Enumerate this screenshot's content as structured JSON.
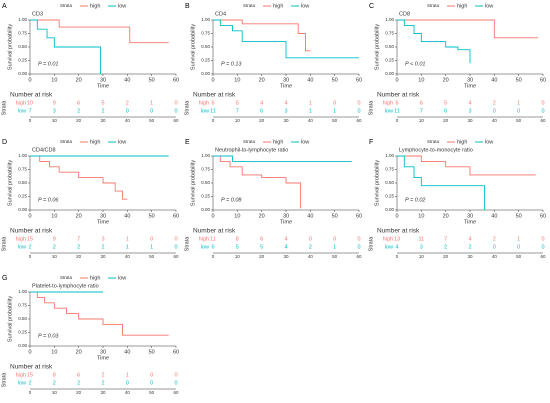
{
  "chart_data": [
    {
      "type": "line",
      "step": true,
      "panel": "A",
      "title": "CD3",
      "annotation": "P = 0.01",
      "legend_title": "Strata",
      "xlabel": "Time",
      "ylabel": "Survival probability",
      "xlim": [
        0,
        60
      ],
      "xticks": [
        0,
        10,
        20,
        30,
        40,
        50,
        60
      ],
      "ylim": [
        0,
        1
      ],
      "yticks": [
        {
          "value": 0,
          "label": "0.00"
        },
        {
          "value": 0.25,
          "label": "0.25"
        },
        {
          "value": 0.5,
          "label": "0.50"
        },
        {
          "value": 0.75,
          "label": "0.75"
        },
        {
          "value": 1,
          "label": "1.00"
        }
      ],
      "series": [
        {
          "name": "high",
          "color": "#F8766D",
          "x": [
            0,
            12,
            41,
            57
          ],
          "values": [
            1,
            0.87,
            0.58,
            0.58
          ]
        },
        {
          "name": "low",
          "color": "#00BFC4",
          "x": [
            0,
            3,
            7,
            10,
            29,
            29
          ],
          "values": [
            1,
            0.83,
            0.67,
            0.5,
            0.5,
            0
          ]
        }
      ],
      "risk_table": {
        "title": "Number at risk",
        "ylabel": "Strata",
        "rows": [
          [
            10,
            9,
            6,
            5,
            2,
            1,
            0
          ],
          [
            7,
            3,
            2,
            2,
            0,
            0,
            0
          ]
        ]
      }
    },
    {
      "type": "line",
      "step": true,
      "panel": "B",
      "title": "CD4",
      "annotation": "P = 0.13",
      "legend_title": "Strata",
      "xlabel": "Time",
      "ylabel": "Survival probability",
      "xlim": [
        0,
        60
      ],
      "xticks": [
        0,
        10,
        20,
        30,
        40,
        50,
        60
      ],
      "ylim": [
        0,
        1
      ],
      "yticks": [
        {
          "value": 0,
          "label": "0.00"
        },
        {
          "value": 0.25,
          "label": "0.25"
        },
        {
          "value": 0.5,
          "label": "0.50"
        },
        {
          "value": 0.75,
          "label": "0.75"
        },
        {
          "value": 1,
          "label": "1.00"
        }
      ],
      "series": [
        {
          "name": "high",
          "color": "#F8766D",
          "x": [
            0,
            12,
            35,
            38,
            40
          ],
          "values": [
            1,
            0.93,
            0.75,
            0.43,
            0.43
          ]
        },
        {
          "name": "low",
          "color": "#00BFC4",
          "x": [
            0,
            3,
            8,
            12,
            30,
            60
          ],
          "values": [
            1,
            0.9,
            0.8,
            0.6,
            0.3,
            0.3
          ]
        }
      ],
      "risk_table": {
        "title": "Number at risk",
        "ylabel": "Strata",
        "rows": [
          [
            6,
            5,
            4,
            4,
            1,
            0,
            0
          ],
          [
            11,
            7,
            6,
            3,
            1,
            1,
            0
          ]
        ]
      }
    },
    {
      "type": "line",
      "step": true,
      "panel": "C",
      "title": "CD8",
      "annotation": "P < 0.01",
      "legend_title": "Strata",
      "xlabel": "Time",
      "ylabel": "Survival probability",
      "xlim": [
        0,
        60
      ],
      "xticks": [
        0,
        10,
        20,
        30,
        40,
        50,
        60
      ],
      "ylim": [
        0,
        1
      ],
      "yticks": [
        {
          "value": 0,
          "label": "0.00"
        },
        {
          "value": 0.25,
          "label": "0.25"
        },
        {
          "value": 0.5,
          "label": "0.50"
        },
        {
          "value": 0.75,
          "label": "0.75"
        },
        {
          "value": 1,
          "label": "1.00"
        }
      ],
      "series": [
        {
          "name": "high",
          "color": "#F8766D",
          "x": [
            0,
            40,
            58
          ],
          "values": [
            1,
            0.67,
            0.67
          ]
        },
        {
          "name": "low",
          "color": "#00BFC4",
          "x": [
            0,
            3,
            7,
            10,
            20,
            25,
            30
          ],
          "values": [
            1,
            0.9,
            0.75,
            0.6,
            0.5,
            0.45,
            0.2
          ]
        }
      ],
      "risk_table": {
        "title": "Number at risk",
        "ylabel": "Strata",
        "rows": [
          [
            6,
            6,
            5,
            4,
            2,
            1,
            0
          ],
          [
            11,
            7,
            6,
            3,
            0,
            0,
            0
          ]
        ]
      }
    },
    {
      "type": "line",
      "step": true,
      "panel": "D",
      "title": "CD4/CD8",
      "annotation": "P = 0.06",
      "legend_title": "Strata",
      "xlabel": "Time",
      "ylabel": "Survival probability",
      "xlim": [
        0,
        60
      ],
      "xticks": [
        0,
        10,
        20,
        30,
        40,
        50,
        60
      ],
      "ylim": [
        0,
        1
      ],
      "yticks": [
        {
          "value": 0,
          "label": "0.00"
        },
        {
          "value": 0.25,
          "label": "0.25"
        },
        {
          "value": 0.5,
          "label": "0.50"
        },
        {
          "value": 0.75,
          "label": "0.75"
        },
        {
          "value": 1,
          "label": "1.00"
        }
      ],
      "series": [
        {
          "name": "high",
          "color": "#F8766D",
          "x": [
            0,
            4,
            8,
            12,
            20,
            30,
            35,
            38,
            40
          ],
          "values": [
            1,
            0.9,
            0.8,
            0.7,
            0.6,
            0.5,
            0.35,
            0.2,
            0.2
          ]
        },
        {
          "name": "low",
          "color": "#00BFC4",
          "x": [
            0,
            57
          ],
          "values": [
            1,
            1
          ]
        }
      ],
      "risk_table": {
        "title": "Number at risk",
        "ylabel": "Strata",
        "rows": [
          [
            15,
            9,
            7,
            3,
            1,
            0,
            0
          ],
          [
            2,
            2,
            2,
            2,
            1,
            1,
            0
          ]
        ]
      }
    },
    {
      "type": "line",
      "step": true,
      "panel": "E",
      "title": "Neutrophil-to-lymphocyte ratio",
      "annotation": "P = 0.08",
      "legend_title": "Strata",
      "xlabel": "Time",
      "ylabel": "Survival probability",
      "xlim": [
        0,
        60
      ],
      "xticks": [
        0,
        10,
        20,
        30,
        40,
        50,
        60
      ],
      "ylim": [
        0,
        1
      ],
      "yticks": [
        {
          "value": 0,
          "label": "0.00"
        },
        {
          "value": 0.25,
          "label": "0.25"
        },
        {
          "value": 0.5,
          "label": "0.50"
        },
        {
          "value": 0.75,
          "label": "0.75"
        },
        {
          "value": 1,
          "label": "1.00"
        }
      ],
      "series": [
        {
          "name": "high",
          "color": "#F8766D",
          "x": [
            0,
            3,
            7,
            12,
            20,
            30,
            36
          ],
          "values": [
            1,
            0.9,
            0.8,
            0.65,
            0.6,
            0.5,
            0.03
          ]
        },
        {
          "name": "low",
          "color": "#00BFC4",
          "x": [
            0,
            8,
            57
          ],
          "values": [
            1,
            0.9,
            0.9
          ]
        }
      ],
      "risk_table": {
        "title": "Number at risk",
        "ylabel": "Strata",
        "rows": [
          [
            11,
            8,
            6,
            4,
            0,
            0,
            0
          ],
          [
            6,
            5,
            5,
            4,
            2,
            1,
            0
          ]
        ]
      }
    },
    {
      "type": "line",
      "step": true,
      "panel": "F",
      "title": "Lymphocyte-to-monocyte ratio",
      "annotation": "P = 0.02",
      "legend_title": "Strata",
      "xlabel": "Time",
      "ylabel": "Survival probability",
      "xlim": [
        0,
        60
      ],
      "xticks": [
        0,
        10,
        20,
        30,
        40,
        50,
        60
      ],
      "ylim": [
        0,
        1
      ],
      "yticks": [
        {
          "value": 0,
          "label": "0.00"
        },
        {
          "value": 0.25,
          "label": "0.25"
        },
        {
          "value": 0.5,
          "label": "0.50"
        },
        {
          "value": 0.75,
          "label": "0.75"
        },
        {
          "value": 1,
          "label": "1.00"
        }
      ],
      "series": [
        {
          "name": "high",
          "color": "#F8766D",
          "x": [
            0,
            10,
            20,
            30,
            57
          ],
          "values": [
            1,
            0.9,
            0.8,
            0.65,
            0.65
          ]
        },
        {
          "name": "low",
          "color": "#00BFC4",
          "x": [
            0,
            3,
            7,
            10,
            36,
            36
          ],
          "values": [
            1,
            0.8,
            0.6,
            0.45,
            0.45,
            0
          ]
        }
      ],
      "risk_table": {
        "title": "Number at risk",
        "ylabel": "Strata",
        "rows": [
          [
            13,
            11,
            7,
            4,
            2,
            1,
            0
          ],
          [
            4,
            3,
            2,
            2,
            0,
            0,
            0
          ]
        ]
      }
    },
    {
      "type": "line",
      "step": true,
      "panel": "G",
      "title": "Platelet-to-lymphocyte ratio",
      "annotation": "P = 0.03",
      "legend_title": "Strata",
      "xlabel": "Time",
      "ylabel": "Survival probability",
      "xlim": [
        0,
        60
      ],
      "xticks": [
        0,
        10,
        20,
        30,
        40,
        50,
        60
      ],
      "ylim": [
        0,
        1
      ],
      "yticks": [
        {
          "value": 0,
          "label": "0.00"
        },
        {
          "value": 0.25,
          "label": "0.25"
        },
        {
          "value": 0.5,
          "label": "0.50"
        },
        {
          "value": 0.75,
          "label": "0.75"
        },
        {
          "value": 1,
          "label": "1.00"
        }
      ],
      "series": [
        {
          "name": "high",
          "color": "#F8766D",
          "x": [
            0,
            3,
            6,
            10,
            15,
            20,
            30,
            38,
            57
          ],
          "values": [
            1,
            0.9,
            0.8,
            0.7,
            0.6,
            0.5,
            0.4,
            0.2,
            0.2
          ]
        },
        {
          "name": "low",
          "color": "#00BFC4",
          "x": [
            0,
            30
          ],
          "values": [
            1,
            1
          ]
        }
      ],
      "risk_table": {
        "title": "Number at risk",
        "ylabel": "Strata",
        "rows": [
          [
            15,
            8,
            6,
            2,
            1,
            0,
            0
          ],
          [
            2,
            2,
            2,
            2,
            0,
            0,
            0
          ]
        ]
      }
    }
  ]
}
